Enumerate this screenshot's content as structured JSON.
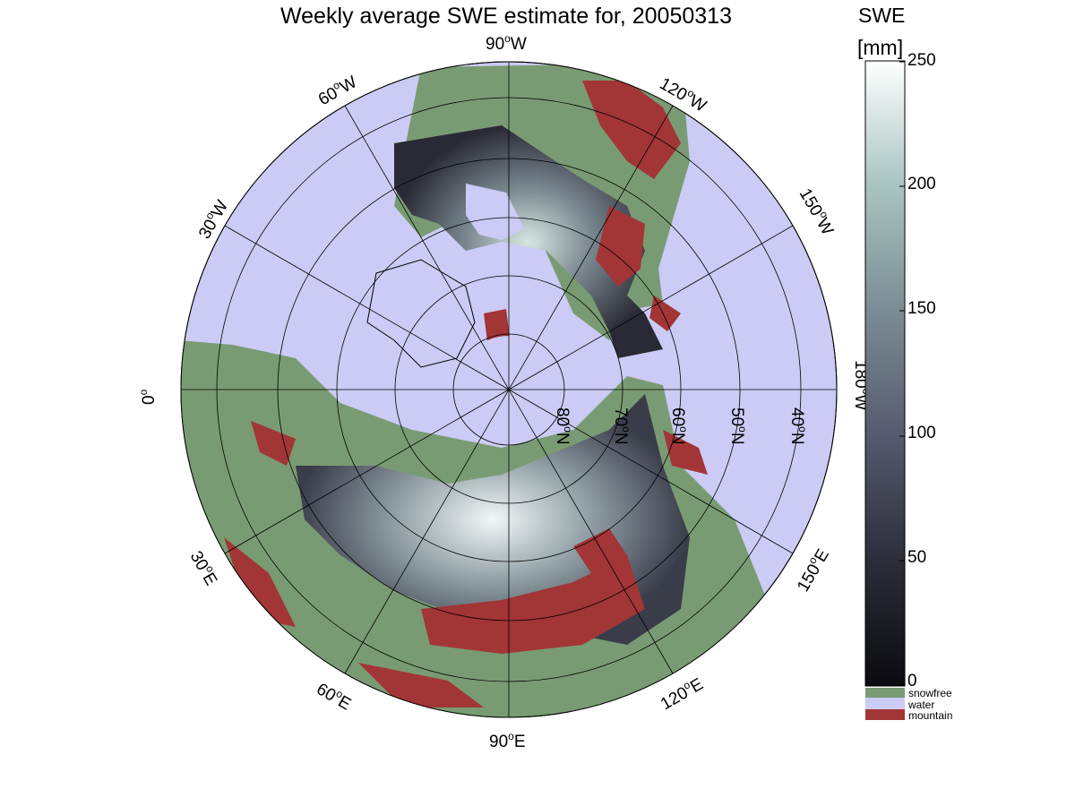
{
  "title": "Weekly average SWE estimate for, 20050313",
  "colorbar": {
    "title": "SWE",
    "unit": "[mm]",
    "ticks": [
      {
        "value": 0,
        "label": "0"
      },
      {
        "value": 50,
        "label": "50"
      },
      {
        "value": 100,
        "label": "100"
      },
      {
        "value": 150,
        "label": "150"
      },
      {
        "value": 200,
        "label": "200"
      },
      {
        "value": 250,
        "label": "250"
      }
    ],
    "range": [
      0,
      250
    ],
    "colormap": [
      "#0a0a0f",
      "#2d2d3a",
      "#565a6e",
      "#7b8c94",
      "#a8c4c0",
      "#ffffff"
    ],
    "categories": [
      {
        "label": "snowfree",
        "color": "#799b73"
      },
      {
        "label": "water",
        "color": "#cbcbf5"
      },
      {
        "label": "mountain",
        "color": "#a23535"
      }
    ]
  },
  "map": {
    "projection": "north polar stereographic",
    "ocean_color": "#cbcbf5",
    "land_snowfree_color": "#799b73",
    "mountain_color": "#a23535",
    "longitude_labels": [
      {
        "deg": "90",
        "hemi": "W"
      },
      {
        "deg": "60",
        "hemi": "W"
      },
      {
        "deg": "120",
        "hemi": "W"
      },
      {
        "deg": "30",
        "hemi": "W"
      },
      {
        "deg": "150",
        "hemi": "W"
      },
      {
        "deg": "0",
        "hemi": ""
      },
      {
        "deg": "180",
        "hemi": "W"
      },
      {
        "deg": "30",
        "hemi": "E"
      },
      {
        "deg": "150",
        "hemi": "E"
      },
      {
        "deg": "60",
        "hemi": "E"
      },
      {
        "deg": "120",
        "hemi": "E"
      },
      {
        "deg": "90",
        "hemi": "E"
      }
    ],
    "latitude_labels": [
      {
        "deg": "80",
        "hemi": "N"
      },
      {
        "deg": "70",
        "hemi": "N"
      },
      {
        "deg": "60",
        "hemi": "N"
      },
      {
        "deg": "50",
        "hemi": "N"
      },
      {
        "deg": "40",
        "hemi": "N"
      }
    ]
  }
}
